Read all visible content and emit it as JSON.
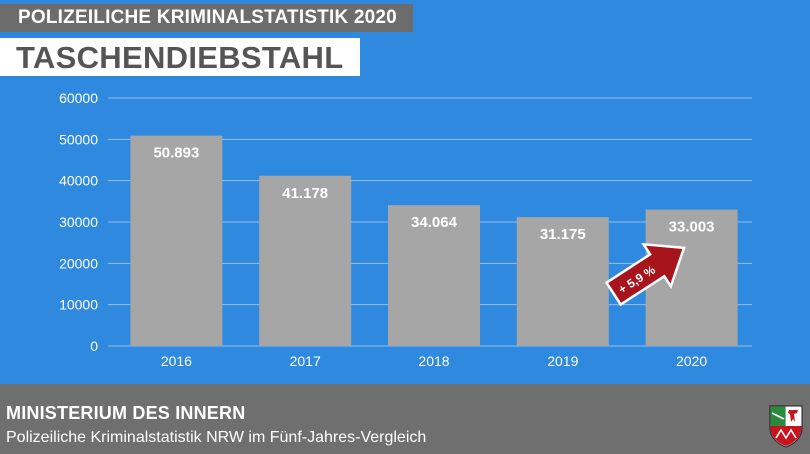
{
  "header": {
    "label": "POLIZEILICHE KRIMINALSTATISTIK 2020",
    "title": "TASCHENDIEBSTAHL"
  },
  "chart_data": {
    "type": "bar",
    "categories": [
      "2016",
      "2017",
      "2018",
      "2019",
      "2020"
    ],
    "values": [
      50893,
      41178,
      34064,
      31175,
      33003
    ],
    "data_labels": [
      "50.893",
      "41.178",
      "34.064",
      "31.175",
      "33.003"
    ],
    "ylim": [
      0,
      60000
    ],
    "yticks": [
      0,
      10000,
      20000,
      30000,
      40000,
      50000,
      60000
    ],
    "ytick_labels": [
      "0",
      "10000",
      "20000",
      "30000",
      "40000",
      "50000",
      "60000"
    ],
    "grid": true,
    "annotation": {
      "text": "+ 5,9 %",
      "target_category": "2020"
    },
    "colors": {
      "background": "#2f8adf",
      "bar": "#a6a6a6",
      "grid": "#8fc0ee",
      "arrow": "#a8141c"
    }
  },
  "footer": {
    "ministry": "MINISTERIUM DES INNERN",
    "subtitle": "Polizeiliche Kriminalstatistik NRW im Fünf-Jahres-Vergleich",
    "crest_icon": "nrw-coat-of-arms-icon"
  }
}
